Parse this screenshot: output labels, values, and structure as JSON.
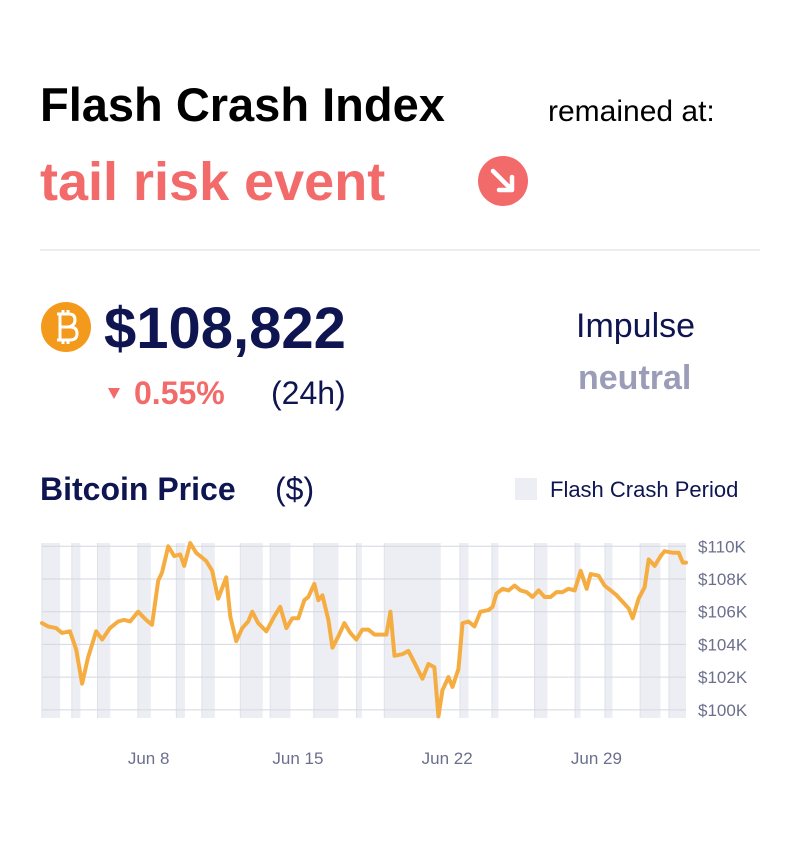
{
  "header": {
    "title": "Flash Crash Index",
    "suffix": "remained at:",
    "status": "tail risk event"
  },
  "price": {
    "value": "$108,822",
    "change": "0.55%",
    "period": "(24h)"
  },
  "impulse": {
    "label": "Impulse",
    "value": "neutral"
  },
  "chart_data": {
    "type": "line",
    "title": "Bitcoin Price",
    "unit": "($)",
    "color": "#f5ad42",
    "x": [
      3.0,
      3.28,
      3.66,
      3.94,
      4.31,
      4.6,
      4.88,
      5.16,
      5.54,
      5.82,
      6.19,
      6.57,
      6.85,
      7.13,
      7.51,
      7.88,
      8.16,
      8.45,
      8.63,
      8.92,
      9.2,
      9.48,
      9.67,
      9.95,
      10.23,
      10.7,
      10.98,
      11.26,
      11.64,
      11.83,
      12.11,
      12.39,
      12.67,
      12.86,
      13.14,
      13.52,
      13.89,
      14.17,
      14.46,
      14.74,
      15.02,
      15.3,
      15.49,
      15.77,
      15.96,
      16.15,
      16.43,
      16.62,
      16.9,
      17.18,
      17.46,
      17.74,
      18.02,
      18.31,
      18.59,
      18.87,
      19.15,
      19.34,
      19.53,
      19.9,
      20.18,
      20.46,
      20.84,
      21.12,
      21.4,
      21.59,
      21.78,
      22.06,
      22.25,
      22.53,
      22.72,
      23.0,
      23.28,
      23.56,
      23.94,
      24.13,
      24.31,
      24.6,
      24.88,
      25.16,
      25.44,
      25.72,
      26.0,
      26.29,
      26.57,
      26.85,
      27.13,
      27.41,
      27.69,
      27.98,
      28.26,
      28.54,
      28.73,
      29.1,
      29.38,
      29.67,
      29.95,
      30.23,
      30.51,
      30.7,
      30.98,
      31.26,
      31.45,
      31.73,
      32.01,
      32.19,
      32.58,
      32.86,
      33.05,
      33.2
    ],
    "values": [
      105300,
      105100,
      105000,
      104700,
      104800,
      103700,
      101600,
      103200,
      104800,
      104300,
      105000,
      105400,
      105500,
      105400,
      106000,
      105500,
      105200,
      107900,
      108400,
      110000,
      109400,
      109500,
      108800,
      110200,
      109600,
      109100,
      108500,
      106800,
      108100,
      105700,
      104200,
      105000,
      105400,
      106000,
      105300,
      104800,
      105700,
      106300,
      105000,
      105600,
      105600,
      106700,
      106900,
      107700,
      106700,
      107000,
      105500,
      103800,
      104500,
      105300,
      104700,
      104300,
      104900,
      104900,
      104600,
      104600,
      104600,
      106000,
      103300,
      103400,
      103600,
      102900,
      101900,
      102800,
      102600,
      99600,
      101200,
      102000,
      101400,
      102500,
      105300,
      105400,
      105100,
      106000,
      106100,
      106300,
      107100,
      107400,
      107300,
      107600,
      107300,
      107200,
      106900,
      107300,
      106900,
      106900,
      107200,
      107200,
      107400,
      107300,
      108500,
      107400,
      108300,
      108200,
      107600,
      107300,
      107000,
      106600,
      106200,
      105600,
      106800,
      107500,
      109200,
      108800,
      109400,
      109700,
      109600,
      109600,
      109000,
      109000
    ],
    "periods": {
      "name": "Flash Crash Period",
      "color": "#eceef3",
      "ranges": [
        [
          3.0,
          3.85
        ],
        [
          4.4,
          4.8
        ],
        [
          5.6,
          6.2
        ],
        [
          7.5,
          8.1
        ],
        [
          9.3,
          9.7
        ],
        [
          10.5,
          11.1
        ],
        [
          12.3,
          13.35
        ],
        [
          13.7,
          14.65
        ],
        [
          15.75,
          16.9
        ],
        [
          17.75,
          18.0
        ],
        [
          19.05,
          21.7
        ],
        [
          22.6,
          23.0
        ],
        [
          24.1,
          24.4
        ],
        [
          26.1,
          26.7
        ],
        [
          28.0,
          28.25
        ],
        [
          29.4,
          29.75
        ],
        [
          31.05,
          32.0
        ],
        [
          32.4,
          33.2
        ]
      ]
    },
    "xlim": [
      3,
      33.2
    ],
    "xticks": [
      {
        "value": 8,
        "label": "Jun 8"
      },
      {
        "value": 15,
        "label": "Jun 15"
      },
      {
        "value": 22,
        "label": "Jun 22"
      },
      {
        "value": 29,
        "label": "Jun 29"
      }
    ],
    "ylim": [
      99500,
      110200
    ],
    "yticks": [
      {
        "value": 100000,
        "label": "$100K"
      },
      {
        "value": 102000,
        "label": "$102K"
      },
      {
        "value": 104000,
        "label": "$104K"
      },
      {
        "value": 106000,
        "label": "$106K"
      },
      {
        "value": 108000,
        "label": "$108K"
      },
      {
        "value": 110000,
        "label": "$110K"
      }
    ],
    "grid": true
  }
}
